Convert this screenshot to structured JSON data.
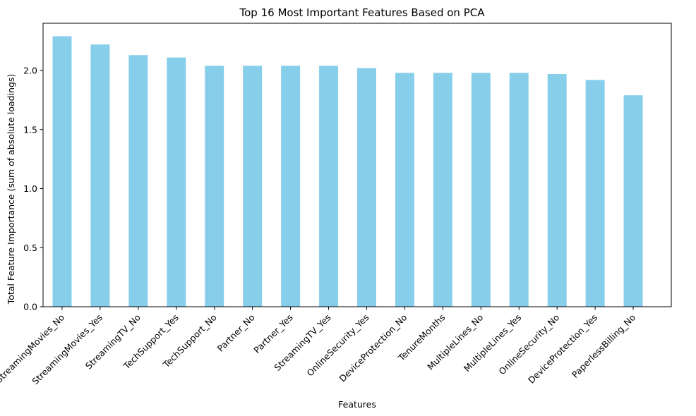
{
  "chart_data": {
    "type": "bar",
    "title": "Top 16 Most Important Features Based on PCA",
    "xlabel": "Features",
    "ylabel": "Total Feature Importance (sum of absolute loadings)",
    "categories": [
      "StreamingMovies_No",
      "StreamingMovies_Yes",
      "StreamingTV_No",
      "TechSupport_Yes",
      "TechSupport_No",
      "Partner_No",
      "Partner_Yes",
      "StreamingTV_Yes",
      "OnlineSecurity_Yes",
      "DeviceProtection_No",
      "TenureMonths",
      "MultipleLines_No",
      "MultipleLines_Yes",
      "OnlineSecurity_No",
      "DeviceProtection_Yes",
      "PaperlessBilling_No"
    ],
    "values": [
      2.29,
      2.22,
      2.13,
      2.11,
      2.04,
      2.04,
      2.04,
      2.04,
      2.02,
      1.98,
      1.98,
      1.98,
      1.98,
      1.97,
      1.92,
      1.79
    ],
    "ylim": [
      0,
      2.4
    ],
    "yticks": [
      0.0,
      0.5,
      1.0,
      1.5,
      2.0
    ],
    "ytick_labels": [
      "0.0",
      "0.5",
      "1.0",
      "1.5",
      "2.0"
    ],
    "grid": false,
    "colors": {
      "bar": "#87ceeb",
      "axis": "#000000"
    }
  }
}
